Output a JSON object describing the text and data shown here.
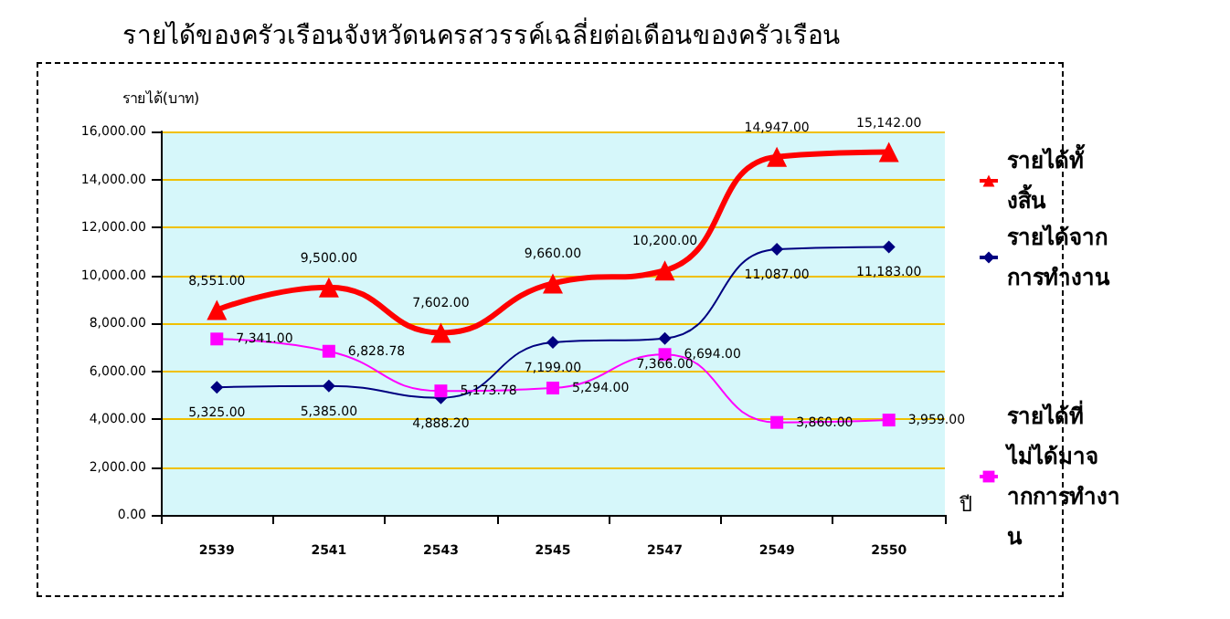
{
  "chart_data": {
    "type": "line",
    "title": "รายได้ของครัวเรือนจังหวัดนครสวรรค์เฉลี่ยต่อเดือนของครัวเรือน",
    "xlabel": "ปี",
    "ylabel": "รายได้(บาท)",
    "categories": [
      "2539",
      "2541",
      "2543",
      "2545",
      "2547",
      "2549",
      "2550"
    ],
    "series": [
      {
        "name": "รายได้ทั้งสิ้น",
        "color": "#ff0000",
        "marker": "triangle",
        "values": [
          8551,
          9500,
          7602,
          9660,
          10200,
          14947,
          15142
        ],
        "value_labels": [
          "8,551.00",
          "9,500.00",
          "7,602.00",
          "9,660.00",
          "10,200.00",
          "14,947.00",
          "15,142.00"
        ]
      },
      {
        "name": "รายได้จากการทำงาน",
        "color": "#000080",
        "marker": "diamond",
        "values": [
          5325,
          5385,
          4888.2,
          7199,
          7366,
          11087,
          11183
        ],
        "value_labels": [
          "5,325.00",
          "5,385.00",
          "4,888.20",
          "7,199.00",
          "7,366.00",
          "11,087.00",
          "11,183.00"
        ]
      },
      {
        "name": "รายได้ที่ไม่ได้มาจากการทำงาน",
        "color": "#ff00ff",
        "marker": "square",
        "values": [
          7341,
          6828.78,
          5173.78,
          5294,
          6694,
          3860,
          3959
        ],
        "value_labels": [
          "7,341.00",
          "6,828.78",
          "5,173.78",
          "5,294.00",
          "6,694.00",
          "3,860.00",
          "3,959.00"
        ]
      }
    ],
    "ylim": [
      0,
      16000
    ],
    "yticks": [
      {
        "value": 0,
        "label": "0.00"
      },
      {
        "value": 2000,
        "label": "2,000.00"
      },
      {
        "value": 4000,
        "label": "4,000.00"
      },
      {
        "value": 6000,
        "label": "6,000.00"
      },
      {
        "value": 8000,
        "label": "8,000.00"
      },
      {
        "value": 10000,
        "label": "10,000.00"
      },
      {
        "value": 12000,
        "label": "12,000.00"
      },
      {
        "value": 14000,
        "label": "14,000.00"
      },
      {
        "value": 16000,
        "label": "16,000.00"
      }
    ],
    "grid": "y",
    "legend": "right"
  }
}
